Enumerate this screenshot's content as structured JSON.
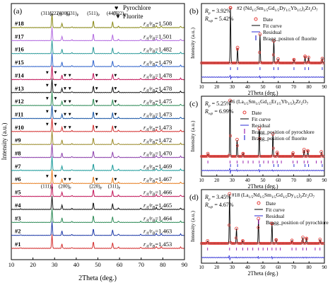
{
  "chart_data": [
    {
      "panel": "(a)",
      "type": "line",
      "xlabel": "2Theta (deg.)",
      "ylabel": "Intensity (a.u.)",
      "xlim": [
        10,
        90
      ],
      "xticks": [
        "10",
        "20",
        "30",
        "40",
        "50",
        "60",
        "70",
        "80",
        "90"
      ],
      "legend": [
        {
          "marker": "♥",
          "label": "Pyrochlore"
        },
        {
          "marker": "▼",
          "label": "Fluorite"
        }
      ],
      "peak_labels_top": [
        "(311)",
        "(222)",
        "(400)",
        "(331)",
        "(511)",
        "(440)",
        "(622)"
      ],
      "peak_labels_top_sub": [
        "P",
        "P",
        "P",
        "P",
        "P",
        "P",
        "P"
      ],
      "peak_labels_bottom": [
        "(111)",
        "(200)",
        "(220)",
        "(311)"
      ],
      "peak_labels_bottom_sub": [
        "F",
        "F",
        "F",
        "F"
      ],
      "peak_positions": [
        14.3,
        28.8,
        33.4,
        38.0,
        47.9,
        56.8,
        59.5
      ],
      "samples": [
        {
          "name": "#18",
          "ratio_text": "r",
          "ratio_value": "=1.508",
          "color": "#8a8a1a"
        },
        {
          "name": "#17",
          "ratio_text": "r",
          "ratio_value": "=1.501",
          "color": "#b36be0"
        },
        {
          "name": "#16",
          "ratio_text": "r",
          "ratio_value": "=1.482",
          "color": "#2c9a9a"
        },
        {
          "name": "#15",
          "ratio_text": "r",
          "ratio_value": "=1.479",
          "color": "#3366cc"
        },
        {
          "name": "#14",
          "ratio_text": "r",
          "ratio_value": "=1.478",
          "color": "#c2185b"
        },
        {
          "name": "#13",
          "ratio_text": "r",
          "ratio_value": "=1.478",
          "color": "#111111"
        },
        {
          "name": "#12",
          "ratio_text": "r",
          "ratio_value": "=1.475",
          "color": "#2e8b57"
        },
        {
          "name": "#11",
          "ratio_text": "r",
          "ratio_value": "=1.473",
          "color": "#1e5aa8"
        },
        {
          "name": "#10",
          "ratio_text": "r",
          "ratio_value": "=1.473",
          "color": "#d32f2f"
        },
        {
          "name": "#9",
          "ratio_text": "r",
          "ratio_value": "=1.472",
          "color": "#9a8a2a"
        },
        {
          "name": "#8",
          "ratio_text": "r",
          "ratio_value": "=1.470",
          "color": "#8e44ad"
        },
        {
          "name": "#7",
          "ratio_text": "r",
          "ratio_value": "=1.469",
          "color": "#1a9a9a"
        },
        {
          "name": "#6",
          "ratio_text": "r",
          "ratio_value": "=1.467",
          "color": "#e67e22"
        },
        {
          "name": "#5",
          "ratio_text": "r",
          "ratio_value": "=1.466",
          "color": "#c2185b"
        },
        {
          "name": "#4",
          "ratio_text": "r",
          "ratio_value": "=1.465",
          "color": "#111111"
        },
        {
          "name": "#3",
          "ratio_text": "r",
          "ratio_value": "=1.464",
          "color": "#2e8b57"
        },
        {
          "name": "#2",
          "ratio_text": "r",
          "ratio_value": "=1.463",
          "color": "#1e3aa8"
        },
        {
          "name": "#1",
          "ratio_text": "r",
          "ratio_value": "=1.453",
          "color": "#d32f2f"
        }
      ],
      "fluorite_samples": [
        "#14",
        "#13",
        "#12",
        "#11",
        "#10",
        "#6"
      ]
    },
    {
      "panel": "(b)",
      "type": "line",
      "title": "#2 (Nd",
      "formula": "#2 (Nd0.2Sm0.2Gd0.2Dy0.2Yb0.2)2Zr2O7",
      "rp": "R",
      "rp_value": "= 3.92%",
      "rwp_value": "= 5.42%",
      "xlabel": "2Theta (deg.)",
      "ylabel": "Intensity (a.u.)",
      "xlim": [
        10,
        90
      ],
      "xticks": [
        "10",
        "20",
        "30",
        "40",
        "50",
        "60",
        "70",
        "80",
        "90"
      ],
      "legend": [
        "Date",
        "Fit curve",
        "Residual",
        "Bragg_positon of fluorite"
      ],
      "peaks": [
        [
          28.9,
          1.0
        ],
        [
          33.5,
          0.28
        ],
        [
          48.1,
          0.52
        ],
        [
          57.1,
          0.4
        ],
        [
          59.9,
          0.07
        ],
        [
          70.2,
          0.06
        ],
        [
          77.4,
          0.12
        ],
        [
          79.7,
          0.1
        ],
        [
          88.6,
          0.08
        ]
      ],
      "bragg": [
        [
          28.9,
          33.5,
          48.1,
          57.1,
          59.9,
          70.2,
          77.4,
          79.7,
          88.6
        ]
      ]
    },
    {
      "panel": "(c)",
      "type": "line",
      "formula": "#6 (La0.2Sm0.2Gd0.2Er0.2Yb0.2)2Zr2O7",
      "rp_value": "= 5.25%",
      "rwp_value": "= 6.99%",
      "xlabel": "2Theta (deg.)",
      "ylabel": "Intensity (a.u.)",
      "xlim": [
        10,
        90
      ],
      "xticks": [
        "10",
        "20",
        "30",
        "40",
        "50",
        "60",
        "70",
        "80",
        "90"
      ],
      "legend": [
        "Date",
        "Fit curve",
        "Residual",
        "Bragg_position of pyrochlore",
        "Bragg_position of fluorite"
      ],
      "peaks": [
        [
          14.2,
          0.05
        ],
        [
          28.6,
          1.0
        ],
        [
          33.2,
          0.3
        ],
        [
          37.1,
          0.05
        ],
        [
          47.6,
          0.5
        ],
        [
          56.5,
          0.4
        ],
        [
          59.3,
          0.07
        ],
        [
          69.6,
          0.06
        ],
        [
          76.8,
          0.12
        ],
        [
          79.2,
          0.1
        ],
        [
          88.0,
          0.08
        ]
      ],
      "bragg": [
        [
          14.2,
          28.6,
          33.2,
          37.1,
          40.4,
          43.6,
          47.6,
          50.5,
          53.4,
          56.5,
          59.3,
          62.0,
          69.6,
          72.3,
          76.8,
          79.2,
          84.7,
          88.0
        ],
        [
          28.9,
          33.5,
          48.1,
          57.1,
          59.9,
          70.2,
          77.4,
          79.7,
          88.6
        ]
      ]
    },
    {
      "panel": "(d)",
      "type": "line",
      "formula": "#18 (La0.2Nd0.2Sm0.2Gd0.2Dy0.2)2Zr2O7",
      "rp_value": "= 3.45%",
      "rwp_value": "= 4.67%",
      "xlabel": "2Theta (deg.)",
      "ylabel": "Intensity (a.u.)",
      "xlim": [
        10,
        90
      ],
      "xticks": [
        "10",
        "20",
        "30",
        "40",
        "50",
        "60",
        "70",
        "80",
        "90"
      ],
      "legend": [
        "Date",
        "Fit curve",
        "Residual",
        "Bragg_position of pyrochlore"
      ],
      "peaks": [
        [
          14.0,
          0.05
        ],
        [
          28.3,
          1.0
        ],
        [
          32.8,
          0.3
        ],
        [
          36.9,
          0.05
        ],
        [
          47.1,
          0.5
        ],
        [
          55.9,
          0.4
        ],
        [
          58.6,
          0.07
        ],
        [
          68.9,
          0.06
        ],
        [
          76.0,
          0.12
        ],
        [
          78.3,
          0.1
        ],
        [
          87.1,
          0.08
        ]
      ],
      "bragg": [
        [
          14.0,
          28.3,
          32.8,
          36.9,
          40.1,
          43.4,
          47.1,
          50.1,
          53.0,
          55.9,
          58.6,
          61.3,
          68.9,
          71.6,
          76.0,
          78.3,
          84.0,
          87.1
        ]
      ]
    }
  ]
}
